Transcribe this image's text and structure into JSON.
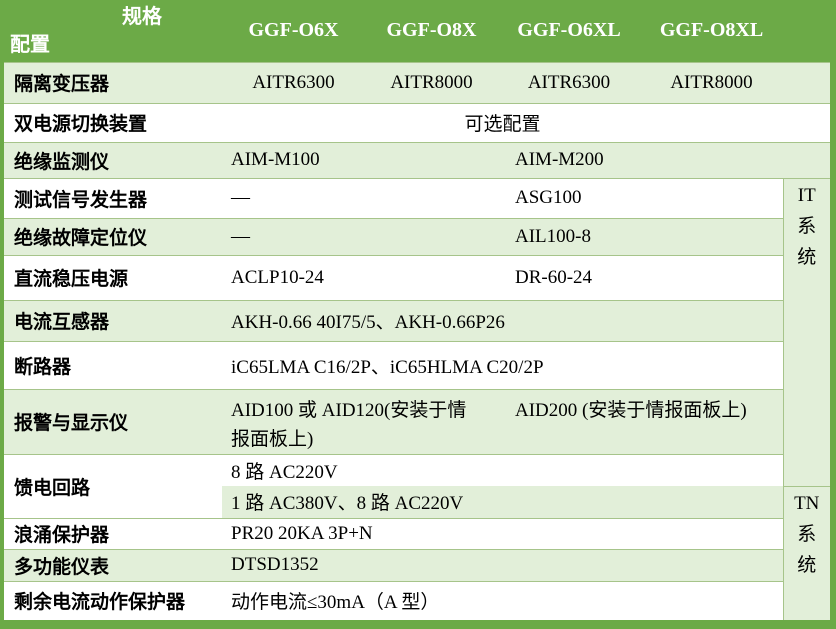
{
  "colors": {
    "accent_green": "#6caa47",
    "light_green_row": "#e2efd9",
    "grid_line": "#a6c48a",
    "header_text": "#ffffff",
    "body_text": "#000000"
  },
  "header": {
    "corner_top": "规格",
    "corner_bottom": "配置",
    "models": [
      "GGF-O6X",
      "GGF-O8X",
      "GGF-O6XL",
      "GGF-O8XL"
    ]
  },
  "rows": [
    {
      "label": "隔离变压器",
      "values": [
        "AITR6300",
        "AITR8000",
        "AITR6300",
        "AITR8000"
      ]
    },
    {
      "label": "双电源切换装置",
      "value": "可选配置"
    },
    {
      "label": "绝缘监测仪",
      "values": [
        "AIM-M100",
        "AIM-M200"
      ]
    },
    {
      "label": "测试信号发生器",
      "values": [
        "—",
        "ASG100"
      ]
    },
    {
      "label": "绝缘故障定位仪",
      "values": [
        "—",
        "AIL100-8"
      ]
    },
    {
      "label": "直流稳压电源",
      "values": [
        "ACLP10-24",
        "DR-60-24"
      ]
    },
    {
      "label": "电流互感器",
      "value": "AKH-0.66 40I75/5、AKH-0.66P26"
    },
    {
      "label": "断路器",
      "value": "iC65LMA C16/2P、iC65HLMA C20/2P"
    },
    {
      "label": "报警与显示仪",
      "values": [
        "AID100 或 AID120(安装于情\n报面板上)",
        "AID200 (安装于情报面板上)"
      ]
    },
    {
      "label": "馈电回路",
      "values": [
        "8 路 AC220V",
        "1 路 AC380V、8 路 AC220V"
      ]
    },
    {
      "label": "浪涌保护器",
      "value": "PR20 20KA 3P+N"
    },
    {
      "label": "多功能仪表",
      "value": "DTSD1352"
    },
    {
      "label": "剩余电流动作保护器",
      "value": "动作电流≤30mA（A 型）"
    }
  ],
  "system_groups": [
    {
      "name": "IT 系统",
      "lines": [
        "IT",
        "系",
        "统"
      ]
    },
    {
      "name": "TN 系统",
      "lines": [
        "TN",
        "系",
        "统"
      ]
    }
  ]
}
